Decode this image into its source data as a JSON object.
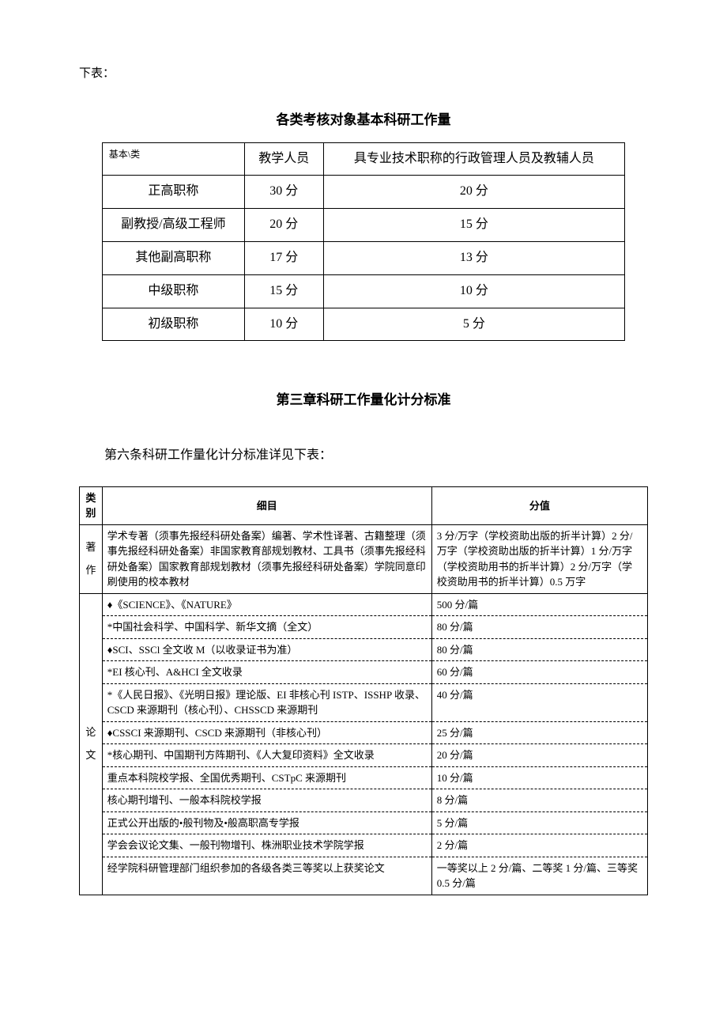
{
  "preText": "下表：",
  "table1": {
    "title": "各类考核对象基本科研工作量",
    "headers": {
      "rowLabel": "基本\\类",
      "col1": "教学人员",
      "col2": "具专业技术职称的行政管理人员及教辅人员"
    },
    "rows": [
      {
        "label": "正高职称",
        "c1": "30 分",
        "c2": "20 分"
      },
      {
        "label": "副教授/高级工程师",
        "c1": "20 分",
        "c2": "15 分"
      },
      {
        "label": "其他副高职称",
        "c1": "17 分",
        "c2": "13 分"
      },
      {
        "label": "中级职称",
        "c1": "15 分",
        "c2": "10 分"
      },
      {
        "label": "初级职称",
        "c1": "10 分",
        "c2": "5 分"
      }
    ]
  },
  "chapterTitle": "第三章科研工作量化计分标准",
  "articleText": "第六条科研工作量化计分标准详见下表：",
  "table2": {
    "headers": {
      "cat": "类别",
      "detail": "细目",
      "score": "分值"
    },
    "groups": [
      {
        "cat": "著作",
        "rows": [
          {
            "detail": "学术专著（须事先报经科研处备案）编著、学术性译著、古籍整理（须事先报经科研处备案）非国家教育部规划教材、工具书（须事先报经科研处备案）国家教育部规划教材（须事先报经科研处备案）学院同意印刷使用的校本教材",
            "score": "3 分/万字（学校资助出版的折半计算）2 分/万字（学校资助出版的折半计算）1 分/万字（学校资助用书的折半计算）2 分/万字（学校资助用书的折半计算）0.5 万字"
          }
        ]
      },
      {
        "cat": "论文",
        "rows": [
          {
            "detail": "♦《SCIENCE》、《NATURE》",
            "score": "500 分/篇"
          },
          {
            "detail": "*中国社会科学、中国科学、新华文摘（全文）",
            "score": "80 分/篇"
          },
          {
            "detail": "♦SCI、SSCl 全文收 M（以收录证书为准）",
            "score": "80 分/篇"
          },
          {
            "detail": "*EI 核心刊、A&HCI 全文收录",
            "score": "60 分/篇"
          },
          {
            "detail": "*《人民日报》、《光明日报》理论版、EI 非核心刊 ISTP、ISSHP 收录、CSCD 来源期刊（核心刊）、CHSSCD 来源期刊",
            "score": "40 分/篇"
          },
          {
            "detail": "♦CSSCI 来源期刊、CSCD 来源期刊（非核心刊）",
            "score": "25 分/篇"
          },
          {
            "detail": "*核心期刊、中国期刊方阵期刊、《人大复印资料》全文收录",
            "score": "20 分/篇"
          },
          {
            "detail": "重点本科院校学报、全国优秀期刊、CSTpC 来源期刊",
            "score": "10 分/篇"
          },
          {
            "detail": "核心期刊增刊、一般本科院校学报",
            "score": "8 分/篇"
          },
          {
            "detail": "正式公开出版的•般刊物及•般高职高专学报",
            "score": "5 分/篇"
          },
          {
            "detail": "学会会议论文集、一般刊物增刊、株洲职业技术学院学报",
            "score": "2 分/篇"
          },
          {
            "detail": "经学院科研管理部门组织参加的各级各类三等奖以上获奖论文",
            "score": "一等奖以上 2 分/篇、二等奖 1 分/篇、三等奖 0.5 分/篇"
          }
        ]
      }
    ]
  }
}
